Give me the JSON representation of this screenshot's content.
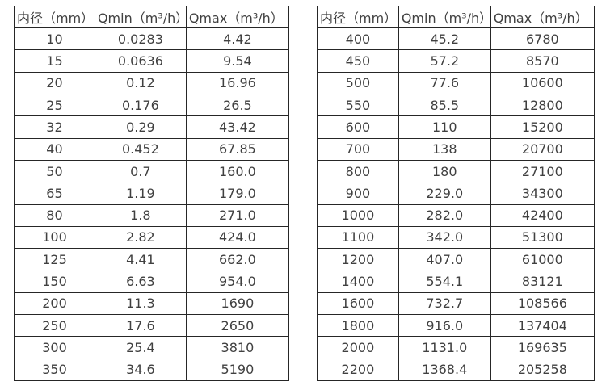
{
  "colors": {
    "background": "#ffffff",
    "border": "#262626",
    "text": "#404040"
  },
  "tables": [
    {
      "name": "flow-table-left",
      "headers": [
        "内径（mm）",
        "Qmin（m³/h）",
        "Qmax（m³/h）"
      ],
      "rows": [
        [
          "10",
          "0.0283",
          "4.42"
        ],
        [
          "15",
          "0.0636",
          "9.54"
        ],
        [
          "20",
          "0.12",
          "16.96"
        ],
        [
          "25",
          "0.176",
          "26.5"
        ],
        [
          "32",
          "0.29",
          "43.42"
        ],
        [
          "40",
          "0.452",
          "67.85"
        ],
        [
          "50",
          "0.7",
          "160.0"
        ],
        [
          "65",
          "1.19",
          "179.0"
        ],
        [
          "80",
          "1.8",
          "271.0"
        ],
        [
          "100",
          "2.82",
          "424.0"
        ],
        [
          "125",
          "4.41",
          "662.0"
        ],
        [
          "150",
          "6.63",
          "954.0"
        ],
        [
          "200",
          "11.3",
          "1690"
        ],
        [
          "250",
          "17.6",
          "2650"
        ],
        [
          "300",
          "25.4",
          "3810"
        ],
        [
          "350",
          "34.6",
          "5190"
        ]
      ]
    },
    {
      "name": "flow-table-right",
      "headers": [
        "内径（mm）",
        "Qmin（m³/h）",
        "Qmax（m³/h）"
      ],
      "rows": [
        [
          "400",
          "45.2",
          "6780"
        ],
        [
          "450",
          "57.2",
          "8570"
        ],
        [
          "500",
          "77.6",
          "10600"
        ],
        [
          "550",
          "85.5",
          "12800"
        ],
        [
          "600",
          "110",
          "15200"
        ],
        [
          "700",
          "138",
          "20700"
        ],
        [
          "800",
          "180",
          "27100"
        ],
        [
          "900",
          "229.0",
          "34300"
        ],
        [
          "1000",
          "282.0",
          "42400"
        ],
        [
          "1100",
          "342.0",
          "51300"
        ],
        [
          "1200",
          "407.0",
          "61000"
        ],
        [
          "1400",
          "554.1",
          "83121"
        ],
        [
          "1600",
          "732.7",
          "108566"
        ],
        [
          "1800",
          "916.0",
          "137404"
        ],
        [
          "2000",
          "1131.0",
          "169635"
        ],
        [
          "2200",
          "1368.4",
          "205258"
        ]
      ]
    }
  ]
}
